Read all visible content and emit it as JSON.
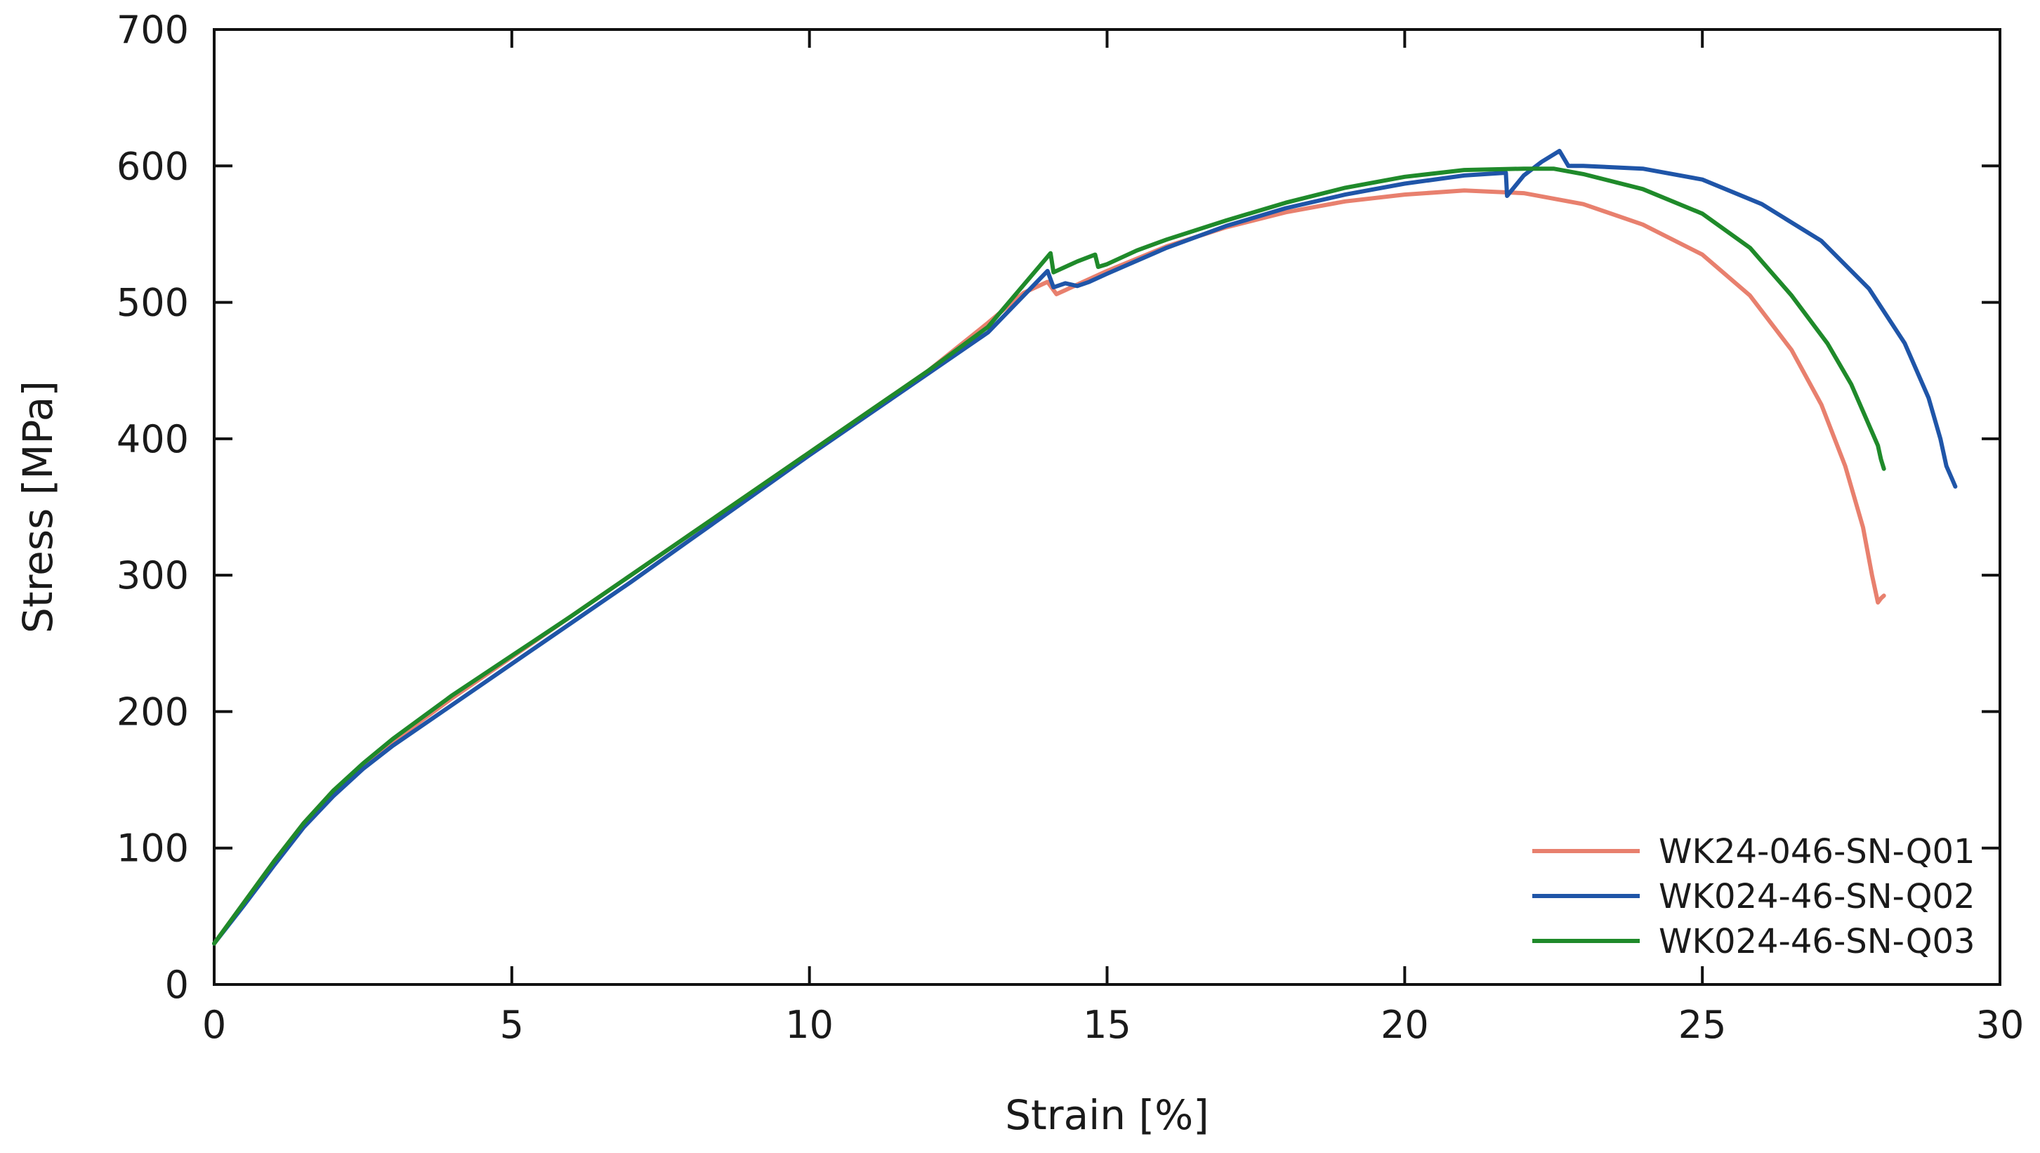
{
  "chart_data": {
    "type": "line",
    "title": "",
    "xlabel": "Strain [%]",
    "ylabel": "Stress [MPa]",
    "xlim": [
      0,
      30
    ],
    "ylim": [
      0,
      700
    ],
    "xticks": [
      "0",
      "5",
      "10",
      "15",
      "20",
      "25",
      "30"
    ],
    "yticks": [
      "0",
      "100",
      "200",
      "300",
      "400",
      "500",
      "600",
      "700"
    ],
    "grid": false,
    "legend_position": "bottom-right",
    "series": [
      {
        "name": "WK24-046-SN-Q01",
        "color": "#e8806e",
        "x": [
          0,
          0.5,
          1,
          1.5,
          2,
          2.5,
          3,
          4,
          5,
          6,
          7,
          8,
          9,
          10,
          11,
          12,
          13,
          13.6,
          14.0,
          14.15,
          14.3,
          14.6,
          15,
          16,
          17,
          18,
          19,
          20,
          21,
          22,
          23,
          24,
          25,
          25.8,
          26.5,
          27.0,
          27.4,
          27.7,
          27.85,
          27.95,
          28.0,
          28.05
        ],
        "y": [
          30,
          60,
          90,
          118,
          142,
          160,
          178,
          210,
          240,
          270,
          300,
          330,
          360,
          390,
          420,
          450,
          485,
          507,
          515,
          506,
          509,
          515,
          523,
          541,
          555,
          566,
          574,
          579,
          582,
          580,
          572,
          557,
          535,
          505,
          465,
          425,
          380,
          335,
          300,
          280,
          283,
          285
        ]
      },
      {
        "name": "WK024-46-SN-Q02",
        "color": "#1f55a8",
        "x": [
          0,
          0.5,
          1,
          1.5,
          2,
          2.5,
          3,
          4,
          5,
          6,
          7,
          8,
          9,
          10,
          11,
          12,
          13,
          14.0,
          14.1,
          14.3,
          14.5,
          14.7,
          15,
          16,
          17,
          18,
          19,
          20,
          21,
          21.7,
          21.72,
          22.0,
          22.3,
          22.6,
          22.75,
          23,
          24,
          25,
          26,
          27,
          27.8,
          28.4,
          28.8,
          29.0,
          29.1,
          29.2,
          29.25
        ],
        "y": [
          30,
          58,
          87,
          115,
          138,
          158,
          175,
          205,
          235,
          265,
          295,
          326,
          357,
          388,
          418,
          448,
          478,
          523,
          511,
          514,
          512,
          515,
          521,
          540,
          556,
          569,
          579,
          587,
          593,
          595,
          578,
          593,
          603,
          611,
          600,
          600,
          598,
          590,
          572,
          545,
          510,
          470,
          430,
          400,
          380,
          370,
          365
        ]
      },
      {
        "name": "WK024-46-SN-Q03",
        "color": "#1f8a2a",
        "x": [
          0,
          0.5,
          1,
          1.5,
          2,
          2.5,
          3,
          4,
          5,
          6,
          7,
          8,
          9,
          10,
          11,
          12,
          13,
          14.05,
          14.1,
          14.5,
          14.8,
          14.85,
          15.0,
          15.5,
          16,
          17,
          18,
          19,
          20,
          21,
          22,
          22.5,
          23,
          24,
          25,
          25.8,
          26.5,
          27.1,
          27.5,
          27.8,
          27.95,
          28.0,
          28.05
        ],
        "y": [
          30,
          60,
          90,
          118,
          142,
          162,
          180,
          212,
          241,
          270,
          300,
          330,
          360,
          390,
          420,
          450,
          482,
          536,
          522,
          530,
          535,
          526,
          528,
          538,
          546,
          560,
          573,
          584,
          592,
          597,
          598,
          598,
          594,
          583,
          565,
          540,
          505,
          470,
          440,
          410,
          395,
          385,
          378
        ]
      }
    ]
  }
}
